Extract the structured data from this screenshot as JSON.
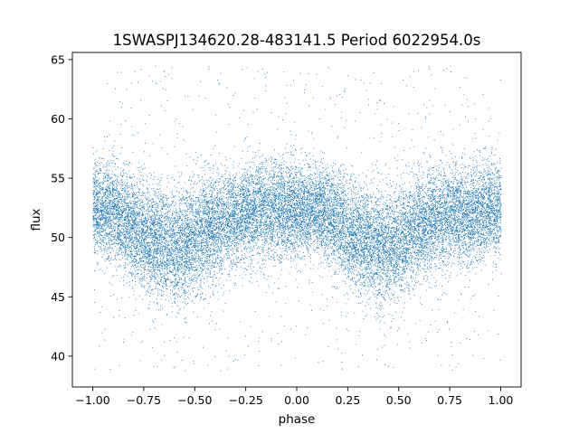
{
  "chart_data": {
    "type": "scatter",
    "title": "1SWASPJ134620.28-483141.5 Period 6022954.0s",
    "xlabel": "phase",
    "ylabel": "flux",
    "xlim": [
      -1.1,
      1.1
    ],
    "ylim": [
      37.4,
      65.6
    ],
    "xticks": [
      -1.0,
      -0.75,
      -0.5,
      -0.25,
      0.0,
      0.25,
      0.5,
      0.75,
      1.0
    ],
    "xtick_labels": [
      "−1.00",
      "−0.75",
      "−0.50",
      "−0.25",
      "0.00",
      "0.25",
      "0.50",
      "0.75",
      "1.00"
    ],
    "yticks": [
      40,
      45,
      50,
      55,
      60,
      65
    ],
    "ytick_labels": [
      "40",
      "45",
      "50",
      "55",
      "60",
      "65"
    ],
    "grid": false,
    "marker_color": "#1f77b4",
    "marker_size": 1,
    "series": [
      {
        "x_range": [
          -1.0,
          1.0
        ],
        "envelope": {
          "phase": [
            -1.0,
            -0.9,
            -0.8,
            -0.75,
            -0.6,
            -0.5,
            -0.4,
            -0.25,
            -0.1,
            0.0,
            0.1,
            0.2,
            0.25,
            0.4,
            0.5,
            0.6,
            0.75,
            0.85,
            0.95,
            1.0
          ],
          "center": [
            52.5,
            52.2,
            51.0,
            50.0,
            49.0,
            50.0,
            51.0,
            52.0,
            52.5,
            52.5,
            52.5,
            51.5,
            50.5,
            49.2,
            49.5,
            51.0,
            52.0,
            52.0,
            52.5,
            52.5
          ],
          "half_width": [
            3.2,
            3.2,
            3.5,
            3.6,
            3.8,
            3.7,
            3.5,
            3.3,
            3.2,
            3.2,
            3.2,
            3.4,
            3.6,
            3.8,
            3.7,
            3.5,
            3.3,
            3.3,
            3.2,
            3.2
          ]
        },
        "outlier_range": [
          38.8,
          64.5
        ],
        "n_points": 20000
      }
    ]
  }
}
